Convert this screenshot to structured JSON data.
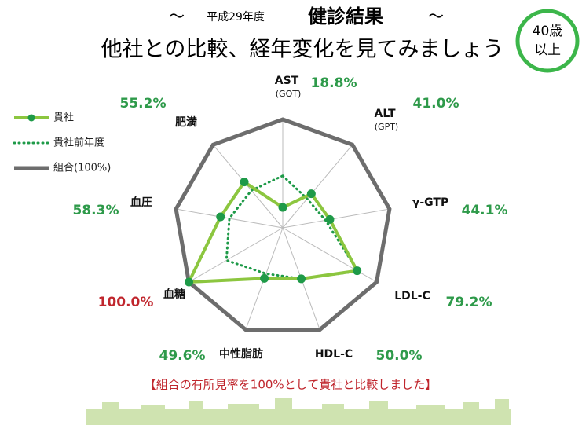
{
  "header": {
    "prefix": "～",
    "year": "平成29年度",
    "title": "健診結果",
    "suffix": "～",
    "subtitle": "他社との比較、経年変化を見てみましょう",
    "badge": [
      "40歳",
      "以上"
    ]
  },
  "chart_data": {
    "type": "radar",
    "categories": [
      "AST",
      "ALT",
      "γ-GTP",
      "LDL-C",
      "HDL-C",
      "中性脂肪",
      "血糖",
      "血圧",
      "肥満"
    ],
    "category_subtitles": [
      "(GOT)",
      "(GPT)",
      null,
      null,
      null,
      null,
      null,
      null,
      null
    ],
    "rlim": [
      0,
      100
    ],
    "series": [
      {
        "name": "貴社",
        "color": "#8cc63f",
        "style": "solid-dots",
        "values": [
          18.8,
          41.0,
          44.1,
          79.2,
          50.0,
          49.6,
          100.0,
          58.3,
          55.2
        ],
        "value_labels": [
          "18.8%",
          "41.0%",
          "44.1%",
          "79.2%",
          "50.0%",
          "49.6%",
          "100.0%",
          "58.3%",
          "55.2%"
        ],
        "value_label_colors": [
          "#2e9a4a",
          "#2e9a4a",
          "#2e9a4a",
          "#2e9a4a",
          "#2e9a4a",
          "#2e9a4a",
          "#c0262d",
          "#2e9a4a",
          "#2e9a4a"
        ]
      },
      {
        "name": "貴社前年度",
        "color": "#1e9a48",
        "style": "dotted",
        "values": [
          48,
          35,
          40,
          80,
          50,
          45,
          60,
          50,
          45
        ]
      },
      {
        "name": "組合(100%)",
        "color": "#6d6d6d",
        "style": "thick",
        "values": [
          100,
          100,
          100,
          100,
          100,
          100,
          100,
          100,
          100
        ]
      }
    ]
  },
  "footer": "【組合の有所見率を100%として貴社と比較しました】"
}
